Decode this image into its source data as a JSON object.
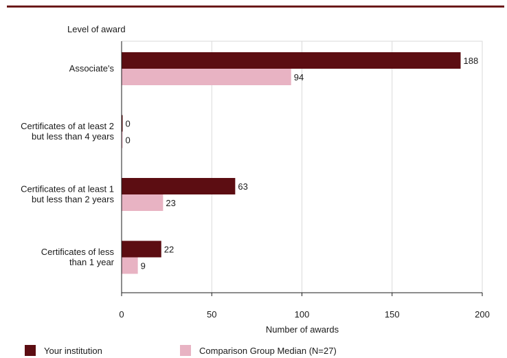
{
  "colors": {
    "your_institution": "#5c0d12",
    "comparison": "#e8b3c3",
    "rule": "#6b1a1a",
    "grid": "#d9d9d9",
    "axis": "#1a1a1a"
  },
  "chart_data": {
    "type": "bar",
    "orientation": "horizontal",
    "title": "",
    "ylabel": "Level of award",
    "xlabel": "Number of awards",
    "xlim": [
      0,
      200
    ],
    "xticks": [
      0,
      50,
      100,
      150,
      200
    ],
    "grid": true,
    "legend_placement": "bottom",
    "categories": [
      [
        "Associate's"
      ],
      [
        "Certificates of at least 2",
        "but less than 4 years"
      ],
      [
        "Certificates of at least 1",
        "but  less than 2 years"
      ],
      [
        "Certificates of less",
        "than 1 year"
      ]
    ],
    "series": [
      {
        "name": "Your institution",
        "values": [
          188,
          0,
          63,
          22
        ]
      },
      {
        "name": "Comparison Group Median (N=27)",
        "values": [
          94,
          0,
          23,
          9
        ]
      }
    ]
  }
}
